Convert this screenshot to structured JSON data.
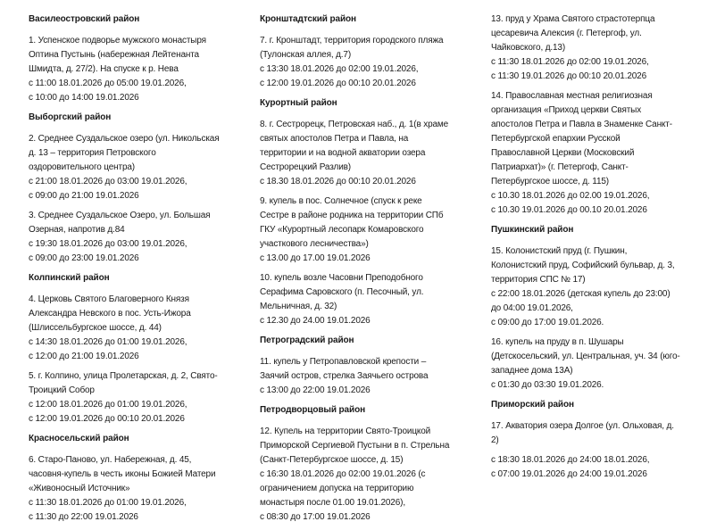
{
  "columns": [
    {
      "blocks": [
        {
          "type": "heading",
          "text": "Василеостровский район"
        },
        {
          "type": "entry",
          "lines": [
            "1. Успенское подворье мужского монастыря",
            "Оптина Пустынь (набережная Лейтенанта",
            "Шмидта, д. 27/2). На спуске к р. Нева",
            "с 11:00 18.01.2026 до 05:00 19.01.2026,",
            "с 10:00 до 14:00 19.01.2026"
          ]
        },
        {
          "type": "heading",
          "text": "Выборгский район"
        },
        {
          "type": "entry",
          "lines": [
            "2. Среднее Суздальское озеро (ул. Никольская",
            "д. 13 – территория Петровского",
            "оздоровительного центра)",
            "с 21:00 18.01.2026 до 03:00 19.01.2026,",
            "с 09:00 до 21:00 19.01.2026"
          ]
        },
        {
          "type": "entry",
          "lines": [
            "3. Среднее Суздальское Озеро, ул. Большая",
            "Озерная, напротив д.84",
            "с 19:30 18.01.2026 до 03:00 19.01.2026,",
            "с 09:00 до 23:00 19.01.2026"
          ]
        },
        {
          "type": "heading",
          "text": "Колпинский район"
        },
        {
          "type": "entry",
          "lines": [
            "4. Церковь Святого Благоверного Князя",
            "Александра Невского в пос. Усть-Ижора",
            "(Шлиссельбургское шоссе, д. 44)",
            "с 14:30 18.01.2026 до 01:00 19.01.2026,",
            "с 12:00 до 21:00 19.01.2026"
          ]
        },
        {
          "type": "entry",
          "lines": [
            "5. г. Колпино, улица Пролетарская, д. 2, Свято-",
            "Троицкий Собор",
            "с 12:00 18.01.2026 до 01:00 19.01.2026,",
            "с 12:00 19.01.2026 до 00:10 20.01.2026"
          ]
        },
        {
          "type": "heading",
          "text": "Красносельский район"
        },
        {
          "type": "entry",
          "lines": [
            "6. Старо-Паново, ул. Набережная, д. 45,",
            "часовня-купель в честь иконы Божией Матери",
            "«Живоносный Источник»",
            "с 11:30 18.01.2026 до 01:00 19.01.2026,",
            "с 11:30 до 22:00 19.01.2026"
          ]
        }
      ]
    },
    {
      "blocks": [
        {
          "type": "heading",
          "text": "Кронштадтский район"
        },
        {
          "type": "entry",
          "lines": [
            "7. г. Кронштадт, территория городского пляжа",
            "(Тулонская аллея, д.7)",
            "с 13:30 18.01.2026 до 02:00 19.01.2026,",
            "с 12:00 19.01.2026 до 00:10 20.01.2026"
          ]
        },
        {
          "type": "heading",
          "text": "Курортный район"
        },
        {
          "type": "entry",
          "lines": [
            "8. г. Сестрорецк, Петровская наб., д. 1(в храме",
            "святых апостолов Петра и Павла, на",
            "территории и на водной акватории озера",
            "Сестрорецкий Разлив)",
            "с 18.30 18.01.2026 до 00:10 20.01.2026"
          ]
        },
        {
          "type": "entry",
          "lines": [
            "9. купель в пос. Солнечное (спуск к реке",
            "Сестре в районе родника на территории СПб",
            "ГКУ «Курортный лесопарк Комаровского",
            "участкового лесничества»)",
            "с 13.00 до 17.00 19.01.2026"
          ]
        },
        {
          "type": "entry",
          "lines": [
            "10. купель возле Часовни Преподобного",
            "Серафима Саровского (п. Песочный, ул.",
            "Мельничная, д. 32)",
            "с 12.30 до 24.00 19.01.2026"
          ]
        },
        {
          "type": "heading",
          "text": "Петроградский район"
        },
        {
          "type": "entry",
          "lines": [
            "11. купель у Петропавловской крепости –",
            "Заячий остров, стрелка Заячьего острова",
            "с 13:00 до 22:00 19.01.2026"
          ]
        },
        {
          "type": "heading",
          "text": "Петродворцовый район"
        },
        {
          "type": "entry",
          "lines": [
            "12. Купель на территории Свято-Троицкой",
            "Приморской Сергиевой Пустыни в п. Стрельна",
            "(Санкт-Петербургское шоссе, д. 15)",
            "с 16:30 18.01.2026 до 02:00 19.01.2026 (с",
            "ограничением допуска на территорию",
            "монастыря после 01.00 19.01.2026),",
            "с 08:30 до 17:00 19.01.2026"
          ]
        }
      ]
    },
    {
      "blocks": [
        {
          "type": "entry",
          "lines": [
            "13. пруд у Храма Святого страстотерпца",
            "цесаревича Алексия (г. Петергоф, ул.",
            "Чайковского, д.13)",
            "с 11:30 18.01.2026 до 02:00 19.01.2026,",
            "с 11:30 19.01.2026 до 00:10 20.01.2026"
          ]
        },
        {
          "type": "entry",
          "lines": [
            "14. Православная местная религиозная",
            "организация «Приход церкви Святых",
            "апостолов Петра и Павла в Знаменке Санкт-",
            "Петербургской епархии Русской",
            "Православной Церкви (Московский",
            "Патриархат)» (г. Петергоф, Санкт-",
            "Петербургское шоссе, д. 115)",
            "с 10.30 18.01.2026 до 02.00 19.01.2026,",
            "с 10.30 19.01.2026 до 00.10 20.01.2026"
          ]
        },
        {
          "type": "heading",
          "text": "Пушкинский район"
        },
        {
          "type": "entry",
          "lines": [
            "15. Колонистский пруд (г. Пушкин,",
            "Колонистский пруд, Софийский бульвар, д. 3,",
            "территория СПС № 17)",
            "с 22:00 18.01.2026 (детская купель до 23:00)",
            "до 04:00 19.01.2026,",
            "с 09:00 до 17:00 19.01.2026."
          ]
        },
        {
          "type": "entry",
          "lines": [
            "16. купель на пруду в п. Шушары",
            "(Детскосельский, ул. Центральная, уч. 34 (юго-",
            "западнее дома 13А)",
            "с 01:30 до 03:30 19.01.2026."
          ]
        },
        {
          "type": "heading",
          "text": "Приморский район"
        },
        {
          "type": "entry",
          "lines": [
            "17. Акватория озера Долгое (ул. Ольховая, д.",
            "2)"
          ]
        },
        {
          "type": "entry",
          "lines": [
            "с 18:30 18.01.2026 до 24:00 18.01.2026,",
            "с 07:00 19.01.2026 до 24:00 19.01.2026"
          ]
        }
      ]
    }
  ]
}
